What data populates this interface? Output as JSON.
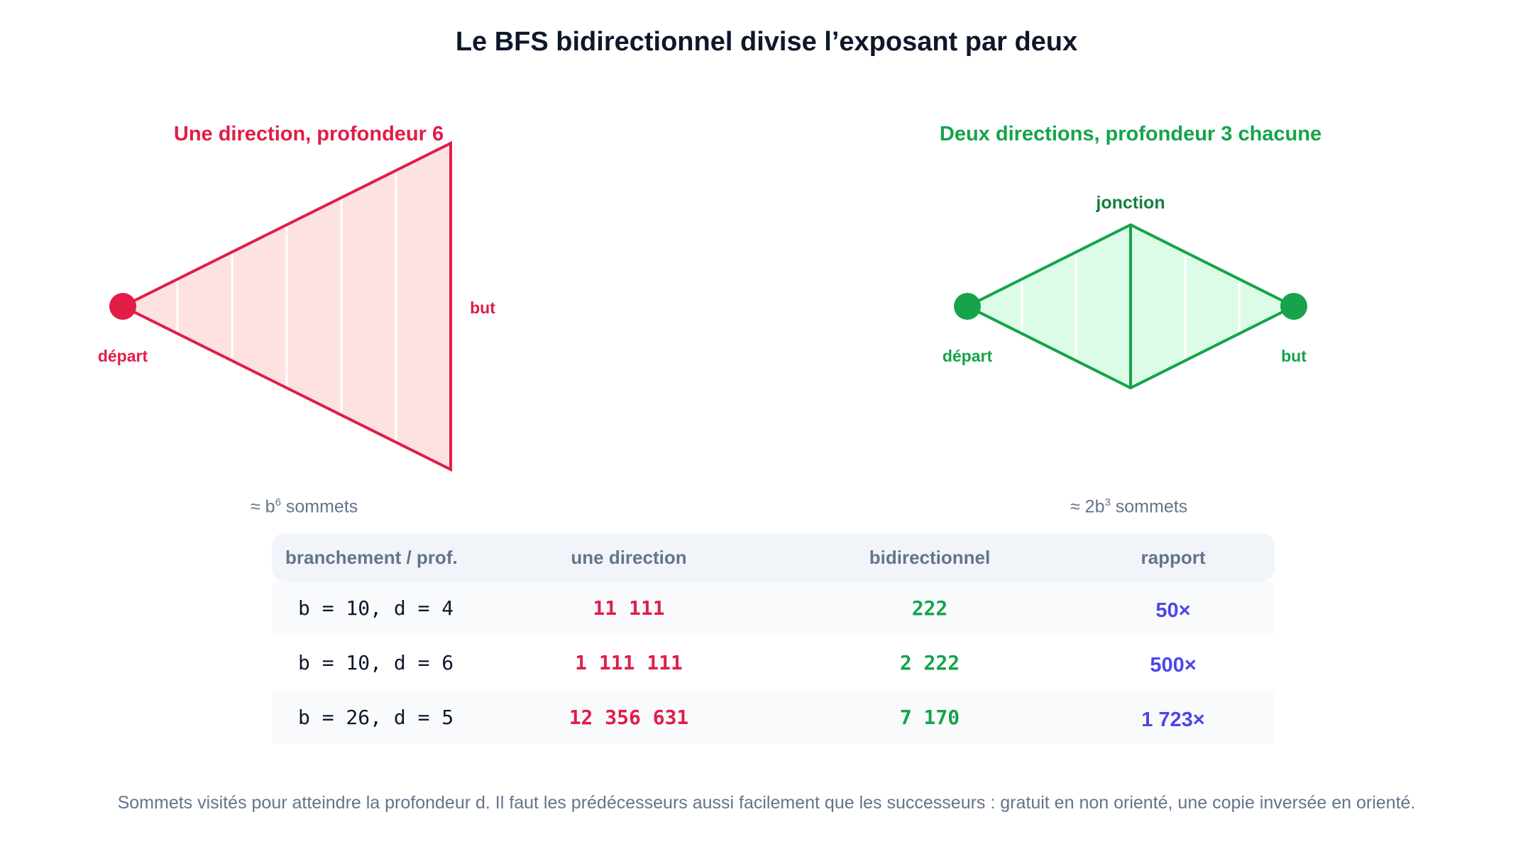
{
  "title": "Le BFS bidirectionnel divise l’exposant par deux",
  "left_panel": {
    "heading": "Une direction, profondeur 6",
    "start_label": "départ",
    "goal_label": "but",
    "approx_prefix": "≈ b",
    "approx_exp": "6",
    "approx_suffix": " sommets",
    "color": "#e11d48",
    "fill": "#fee2e2"
  },
  "right_panel": {
    "heading": "Deux directions, profondeur 3 chacune",
    "junction_label": "jonction",
    "start_label": "départ",
    "goal_label": "but",
    "approx_prefix": "≈ 2b",
    "approx_exp": "3",
    "approx_suffix": " sommets",
    "color": "#16a34a",
    "fill": "#dcfce7"
  },
  "table": {
    "headers": [
      "branchement / prof.",
      "une direction",
      "bidirectionnel",
      "rapport"
    ],
    "rows": [
      {
        "label": "b = 10,  d = 4",
        "one_dir": "11 111",
        "bidir": "222",
        "ratio": "50×"
      },
      {
        "label": "b = 10,  d = 6",
        "one_dir": "1 111 111",
        "bidir": "2 222",
        "ratio": "500×"
      },
      {
        "label": "b = 26,  d = 5",
        "one_dir": "12 356 631",
        "bidir": "7 170",
        "ratio": "1 723×"
      }
    ]
  },
  "footnote": "Sommets visités pour atteindre la profondeur d. Il faut les prédécesseurs aussi facilement que les successeurs : gratuit en non orienté, une copie inversée en orienté."
}
